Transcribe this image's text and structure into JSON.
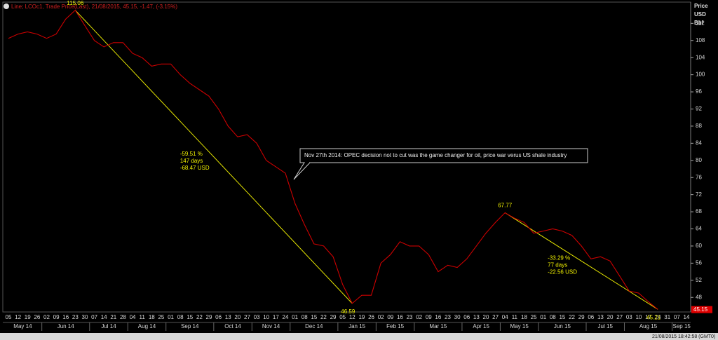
{
  "chart_data": {
    "type": "line",
    "title": "Line; LCOc1, Trade Price(Last), 21/08/2015, 45.15, -1.47, (-3.15%)",
    "y_axis_label": [
      "Price",
      "USD",
      "Bbl"
    ],
    "categories": [
      "05",
      "12",
      "19",
      "26",
      "02",
      "09",
      "16",
      "23",
      "30",
      "07",
      "14",
      "21",
      "28",
      "04",
      "11",
      "18",
      "25",
      "01",
      "08",
      "15",
      "22",
      "29",
      "06",
      "13",
      "20",
      "27",
      "03",
      "10",
      "17",
      "24",
      "01",
      "08",
      "15",
      "22",
      "29",
      "05",
      "12",
      "19",
      "26",
      "02",
      "09",
      "16",
      "23",
      "02",
      "09",
      "16",
      "23",
      "30",
      "06",
      "13",
      "20",
      "27",
      "04",
      "11",
      "18",
      "25",
      "01",
      "08",
      "15",
      "22",
      "29",
      "06",
      "13",
      "20",
      "27",
      "03",
      "10",
      "17",
      "24",
      "31",
      "07",
      "14"
    ],
    "months": [
      "May 14",
      "Jun 14",
      "Jul 14",
      "Aug 14",
      "Sep 14",
      "Oct 14",
      "Nov 14",
      "Dec 14",
      "Jan 15",
      "Feb 15",
      "Mar 15",
      "Apr 15",
      "May 15",
      "Jun 15",
      "Jul 15",
      "Aug 15",
      "Sep 15"
    ],
    "series": [
      {
        "name": "LCOc1",
        "color": "#cc0000",
        "values": [
          108.5,
          109.5,
          110,
          109.5,
          108.5,
          109.5,
          113,
          115.06,
          111.5,
          108,
          106.5,
          107.5,
          107.5,
          105,
          104,
          102,
          102.5,
          102.5,
          100,
          98,
          96.5,
          95,
          92,
          88,
          85.5,
          86,
          84,
          80,
          78.5,
          77,
          70,
          65,
          60.5,
          60,
          57.5,
          51,
          46.59,
          48.5,
          48.5,
          56,
          58,
          61,
          60,
          60,
          58,
          54,
          55.5,
          55,
          57,
          60,
          63,
          65.5,
          67.77,
          66.5,
          65.5,
          63,
          63.5,
          64,
          63.5,
          62.5,
          60,
          57,
          57.5,
          56.5,
          53,
          49.5,
          49,
          47,
          45.21,
          null,
          null,
          null
        ]
      }
    ],
    "last_price": 45.15,
    "ylim": [
      44.6,
      115
    ],
    "yticks": [
      48,
      52,
      56,
      60,
      64,
      68,
      72,
      76,
      80,
      84,
      88,
      92,
      96,
      100,
      104,
      108,
      112
    ],
    "grid": false,
    "trendlines": [
      {
        "color": "#e5e500",
        "start": 115.06,
        "end": 46.59,
        "lines": [
          "-59.51 %",
          "147 days",
          "-68.47 USD"
        ]
      },
      {
        "color": "#e5e500",
        "start": 67.77,
        "end": 45.21,
        "lines": [
          "-33.29 %",
          "77 days",
          "-22.56 USD"
        ]
      }
    ],
    "callout": "Nov 27th 2014: OPEC decision not to cut was the game changer for oil, price war verus US shale industry",
    "timestamp": "21/08/2015 18:42:58 (GMT0)"
  }
}
